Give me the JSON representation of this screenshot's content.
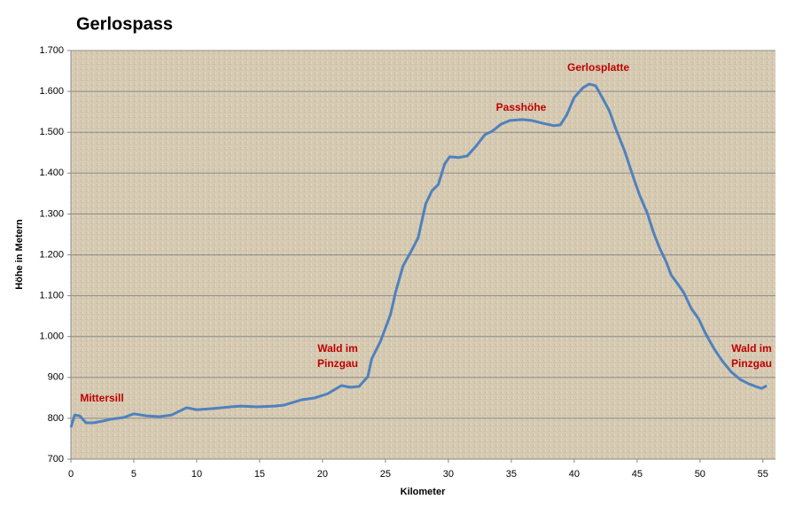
{
  "chart_data": {
    "type": "line",
    "title": "Gerlospass",
    "x_label": "Kilometer",
    "y_label": "Höhe in Metern",
    "xlim": [
      0,
      56
    ],
    "xticks": [
      0,
      5,
      10,
      15,
      20,
      25,
      30,
      35,
      40,
      45,
      50,
      55
    ],
    "ylim": [
      700,
      1700
    ],
    "yticks": [
      700,
      800,
      900,
      {
        "value": 1000,
        "label": "1.000"
      },
      {
        "value": 1100,
        "label": "1.100"
      },
      {
        "value": 1200,
        "label": "1.200"
      },
      {
        "value": 1300,
        "label": "1.300"
      },
      {
        "value": 1400,
        "label": "1.400"
      },
      {
        "value": 1500,
        "label": "1.500"
      },
      {
        "value": 1600,
        "label": "1.600"
      },
      {
        "value": 1700,
        "label": "1.700"
      }
    ],
    "grid": true,
    "series": [
      {
        "color": "#4f81bd",
        "x": [
          0,
          0.3,
          0.7,
          1.2,
          1.8,
          2.5,
          3.2,
          4.2,
          5,
          6,
          7,
          8,
          9.2,
          10,
          11.3,
          12.7,
          13.5,
          14.8,
          16.2,
          16.9,
          18.3,
          19.4,
          20.4,
          21.5,
          22.2,
          22.9,
          23.6,
          23.9,
          24.6,
          25.4,
          25.8,
          26.4,
          27.1,
          27.6,
          28.2,
          28.7,
          29.2,
          29.7,
          30.1,
          30.8,
          31.5,
          32.2,
          32.9,
          33.5,
          34.2,
          34.9,
          35.9,
          36.6,
          37.5,
          38.4,
          38.9,
          39.4,
          40,
          40.7,
          41.2,
          41.7,
          42.3,
          42.8,
          43.3,
          44,
          44.7,
          45.2,
          45.8,
          46.3,
          46.8,
          47.3,
          47.7,
          48.2,
          48.7,
          49.3,
          49.9,
          50.4,
          51.1,
          51.8,
          52.5,
          53.2,
          53.9,
          54.6,
          54.9,
          55.3
        ],
        "values": [
          778,
          808,
          806,
          789,
          789,
          793,
          798,
          802,
          811,
          806,
          804,
          808,
          826,
          821,
          824,
          828,
          830,
          828,
          830,
          832,
          845,
          850,
          860,
          880,
          876,
          878,
          902,
          945,
          988,
          1054,
          1108,
          1173,
          1212,
          1242,
          1325,
          1357,
          1372,
          1422,
          1440,
          1438,
          1442,
          1466,
          1494,
          1503,
          1520,
          1529,
          1531,
          1529,
          1522,
          1516,
          1518,
          1542,
          1585,
          1609,
          1618,
          1614,
          1581,
          1552,
          1509,
          1455,
          1390,
          1346,
          1303,
          1255,
          1216,
          1184,
          1151,
          1130,
          1108,
          1069,
          1043,
          1010,
          971,
          939,
          913,
          895,
          884,
          876,
          873,
          880
        ]
      }
    ],
    "annotations": [
      {
        "lines": [
          "Mittersill"
        ]
      },
      {
        "lines": [
          "Wald im",
          "Pinzgau"
        ]
      },
      {
        "lines": [
          "Passhöhe"
        ]
      },
      {
        "lines": [
          "Gerlosplatte"
        ]
      },
      {
        "lines": [
          "Wald im",
          "Pinzgau"
        ]
      }
    ]
  }
}
